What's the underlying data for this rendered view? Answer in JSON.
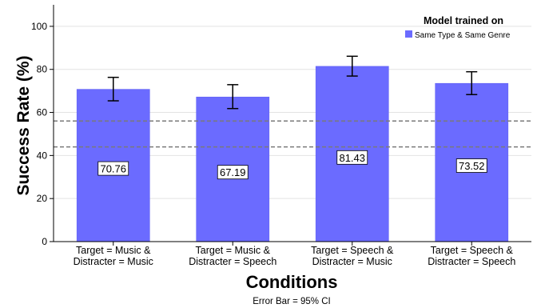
{
  "chart_data": {
    "type": "bar",
    "categories": [
      [
        "Target = Music &",
        "Distracter = Music"
      ],
      [
        "Target = Music &",
        "Distracter = Speech"
      ],
      [
        "Target = Speech &",
        "Distracter = Music"
      ],
      [
        "Target = Speech &",
        "Distracter = Speech"
      ]
    ],
    "series": [
      {
        "name": "Same Type & Same Genre",
        "values": [
          70.76,
          67.19,
          81.43,
          73.52
        ],
        "ci_low": [
          65.4,
          61.8,
          76.9,
          68.3
        ],
        "ci_high": [
          76.3,
          72.9,
          86.1,
          78.9
        ],
        "labels": [
          "70.76",
          "67.19",
          "81.43",
          "73.52"
        ],
        "color": "#6b6bff"
      }
    ],
    "xlabel": "Conditions",
    "ylabel": "Success Rate (%)",
    "ylim": [
      0,
      110
    ],
    "yticks": [
      0,
      20,
      40,
      60,
      80,
      100
    ],
    "reference_lines": [
      44,
      56
    ],
    "grid": true,
    "legend": {
      "title": "Model trained on",
      "placement": "top-right"
    },
    "footnote": "Error Bar = 95% CI"
  }
}
